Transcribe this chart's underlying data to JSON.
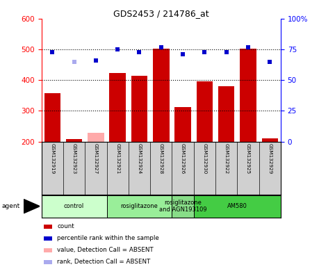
{
  "title": "GDS2453 / 214786_at",
  "samples": [
    "GSM132919",
    "GSM132923",
    "GSM132927",
    "GSM132921",
    "GSM132924",
    "GSM132928",
    "GSM132926",
    "GSM132930",
    "GSM132922",
    "GSM132925",
    "GSM132929"
  ],
  "bar_values": [
    357,
    208,
    228,
    422,
    415,
    502,
    312,
    396,
    381,
    502,
    210
  ],
  "bar_absent": [
    false,
    false,
    true,
    false,
    false,
    false,
    false,
    false,
    false,
    false,
    false
  ],
  "percentile_values": [
    73,
    65,
    66,
    75,
    73,
    77,
    71,
    73,
    73,
    77,
    65
  ],
  "percentile_absent": [
    false,
    true,
    false,
    false,
    false,
    false,
    false,
    false,
    false,
    false,
    false
  ],
  "ylim_left": [
    200,
    600
  ],
  "ylim_right": [
    0,
    100
  ],
  "yticks_left": [
    200,
    300,
    400,
    500,
    600
  ],
  "yticks_right": [
    0,
    25,
    50,
    75,
    100
  ],
  "bar_color": "#cc0000",
  "bar_absent_color": "#ffaaaa",
  "dot_color": "#0000cc",
  "dot_absent_color": "#aaaaee",
  "groups": [
    {
      "label": "control",
      "start": 0,
      "end": 3,
      "color": "#ccffcc"
    },
    {
      "label": "rosiglitazone",
      "start": 3,
      "end": 6,
      "color": "#99ee99"
    },
    {
      "label": "rosiglitazone\nand AGN193109",
      "start": 6,
      "end": 7,
      "color": "#88dd88"
    },
    {
      "label": "AM580",
      "start": 7,
      "end": 11,
      "color": "#44cc44"
    }
  ],
  "legend_items": [
    {
      "label": "count",
      "color": "#cc0000"
    },
    {
      "label": "percentile rank within the sample",
      "color": "#0000cc"
    },
    {
      "label": "value, Detection Call = ABSENT",
      "color": "#ffaaaa"
    },
    {
      "label": "rank, Detection Call = ABSENT",
      "color": "#aaaaee"
    }
  ],
  "dotted_lines": [
    300,
    400,
    500
  ],
  "right_axis_top_label": "100%"
}
